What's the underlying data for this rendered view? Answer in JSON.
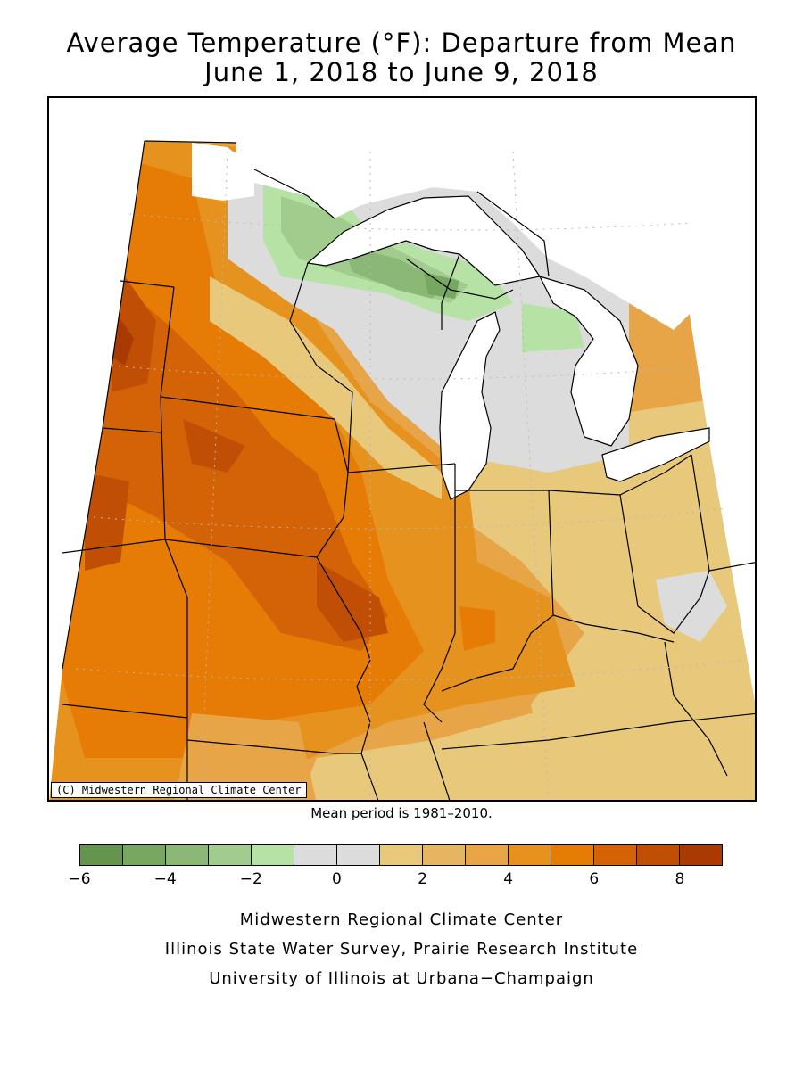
{
  "title": {
    "line1": "Average Temperature (°F): Departure from Mean",
    "line2": "June 1, 2018 to June 9, 2018"
  },
  "map": {
    "copyright": "(C) Midwestern Regional Climate Center",
    "mean_period": "Mean period is 1981–2010."
  },
  "legend": {
    "bins": [
      {
        "from": -6,
        "to": -5,
        "color": "#65944f"
      },
      {
        "from": -5,
        "to": -4,
        "color": "#76a862"
      },
      {
        "from": -4,
        "to": -3,
        "color": "#8cb877"
      },
      {
        "from": -3,
        "to": -2,
        "color": "#a2cb8e"
      },
      {
        "from": -2,
        "to": -1,
        "color": "#b6e2a6"
      },
      {
        "from": -1,
        "to": 0,
        "color": "#dcdcdc"
      },
      {
        "from": 0,
        "to": 1,
        "color": "#dcdcdc"
      },
      {
        "from": 1,
        "to": 2,
        "color": "#e8c97c"
      },
      {
        "from": 2,
        "to": 3,
        "color": "#e5b661"
      },
      {
        "from": 3,
        "to": 4,
        "color": "#e7a547"
      },
      {
        "from": 4,
        "to": 5,
        "color": "#e6921e"
      },
      {
        "from": 5,
        "to": 6,
        "color": "#e67b05"
      },
      {
        "from": 6,
        "to": 7,
        "color": "#d46307"
      },
      {
        "from": 7,
        "to": 8,
        "color": "#c04f05"
      },
      {
        "from": 8,
        "to": 9,
        "color": "#a83a02"
      }
    ],
    "tick_labels": [
      "−6",
      "−4",
      "−2",
      "0",
      "2",
      "4",
      "6",
      "8"
    ]
  },
  "credits": {
    "line1": "Midwestern Regional Climate Center",
    "line2": "Illinois State Water Survey, Prairie Research Institute",
    "line3": "University of Illinois at Urbana−Champaign"
  },
  "colors": {
    "lake_water": "#ffffff",
    "no_data": "#ffffff",
    "boundary": "#000000"
  }
}
